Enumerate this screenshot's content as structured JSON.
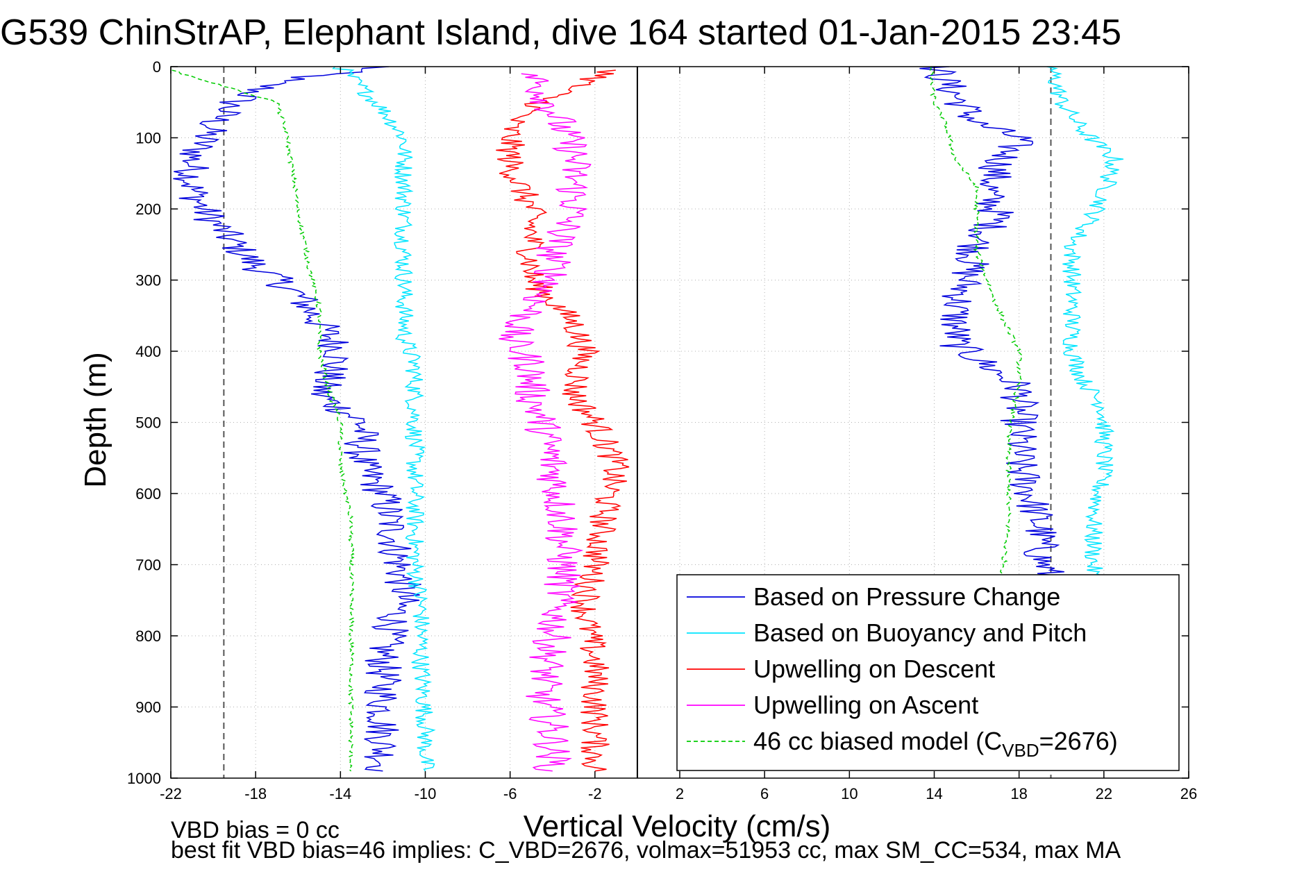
{
  "title": "G539 ChinStrAP, Elephant Island, dive 164 started 01-Jan-2015 23:45",
  "footer": {
    "line1": "VBD bias = 0 cc",
    "line2": "best fit VBD bias=46 implies: C_VBD=2676, volmax=51953 cc, max SM_CC=534, max MA"
  },
  "chart_data": {
    "type": "line",
    "title": "G539 ChinStrAP, Elephant Island, dive 164 started 01-Jan-2015 23:45",
    "xlabel": "Vertical Velocity (cm/s)",
    "ylabel": "Depth (m)",
    "xlim": [
      -22,
      26
    ],
    "ylim": [
      0,
      1000
    ],
    "y_reversed": true,
    "grid": true,
    "xticks": [
      -22,
      -18,
      -14,
      -10,
      -6,
      -2,
      2,
      6,
      10,
      14,
      18,
      22,
      26
    ],
    "yticks": [
      0,
      100,
      200,
      300,
      400,
      500,
      600,
      700,
      800,
      900,
      1000
    ],
    "legend_position": "bottom-right",
    "reference_lines": [
      {
        "type": "vertical",
        "x": -19.5,
        "style": "dashed",
        "color": "#555555"
      },
      {
        "type": "vertical",
        "x": 19.5,
        "style": "dashed",
        "color": "#555555"
      },
      {
        "type": "vertical",
        "x": 0,
        "style": "solid",
        "color": "#000000"
      }
    ],
    "series": [
      {
        "name": "Based on Pressure Change",
        "color": "#0000dd",
        "style": "solid",
        "noise": 0.9,
        "x": [
          -12,
          -17,
          -19,
          -20,
          -21,
          -21,
          -20.5,
          -19,
          -18,
          -16,
          -15,
          -14,
          -15,
          -13,
          -13,
          -12,
          -11.5,
          -11,
          -12,
          -12,
          -12
        ],
        "y": [
          0,
          20,
          50,
          80,
          130,
          170,
          200,
          250,
          280,
          320,
          360,
          400,
          460,
          500,
          560,
          600,
          660,
          740,
          820,
          900,
          990
        ]
      },
      {
        "name": "Based on Pressure Change",
        "color": "#0000dd",
        "style": "solid",
        "noise": 0.9,
        "x": [
          14,
          15,
          16,
          18,
          17,
          16.5,
          17,
          16,
          15.5,
          15,
          15,
          16,
          18,
          18,
          18,
          18.5,
          19,
          19,
          19.5
        ],
        "y": [
          0,
          40,
          80,
          100,
          140,
          180,
          210,
          250,
          300,
          340,
          390,
          410,
          450,
          500,
          560,
          600,
          650,
          690,
          720
        ]
      },
      {
        "name": "Based on Buoyancy and Pitch",
        "color": "#00e5ff",
        "style": "solid",
        "noise": 0.45,
        "x": [
          -14,
          -12,
          -11,
          -11,
          -11,
          -11,
          -11,
          -10.5,
          -10.5,
          -10.5,
          -10.5,
          -10.5,
          -10.2,
          -10.2,
          -10,
          -10
        ],
        "y": [
          0,
          60,
          100,
          180,
          250,
          320,
          380,
          420,
          460,
          520,
          600,
          700,
          760,
          840,
          920,
          990
        ]
      },
      {
        "name": "Based on Buoyancy and Pitch",
        "color": "#00e5ff",
        "style": "solid",
        "noise": 0.45,
        "x": [
          19.5,
          20,
          21,
          22.5,
          22,
          21.5,
          20.5,
          20.5,
          20.5,
          21,
          22,
          22,
          21.5,
          21.5
        ],
        "y": [
          0,
          50,
          90,
          130,
          180,
          210,
          250,
          330,
          400,
          440,
          480,
          560,
          640,
          720
        ]
      },
      {
        "name": "Upwelling on Descent",
        "color": "#ff0000",
        "style": "solid",
        "noise": 0.7,
        "x": [
          -1,
          -4,
          -6,
          -6,
          -5,
          -5,
          -5,
          -3,
          -2.5,
          -3,
          -2,
          -1,
          -1.5,
          -2,
          -2.5,
          -2,
          -2,
          -2
        ],
        "y": [
          5,
          40,
          80,
          140,
          200,
          260,
          300,
          360,
          400,
          460,
          500,
          560,
          620,
          700,
          760,
          840,
          920,
          990
        ]
      },
      {
        "name": "Upwelling on Ascent",
        "color": "#ff00ff",
        "style": "solid",
        "noise": 0.9,
        "x": [
          -5,
          -4,
          -3,
          -3,
          -4,
          -4,
          -5,
          -6,
          -5,
          -5,
          -4.5,
          -4,
          -3.5,
          -3.5,
          -4,
          -4.5,
          -4,
          -4
        ],
        "y": [
          10,
          60,
          120,
          200,
          260,
          300,
          340,
          380,
          420,
          460,
          500,
          560,
          640,
          720,
          800,
          880,
          940,
          990
        ]
      },
      {
        "name": "46 cc biased model (C_VBD=2676)",
        "color": "#00cc00",
        "style": "dashed",
        "noise": 0.12,
        "x": [
          -22,
          -17,
          -16.5,
          -16,
          -15.5,
          -15,
          -15,
          -14.5,
          -14,
          -14,
          -13.5,
          -13.5,
          -13.5,
          -13.5
        ],
        "y": [
          5,
          50,
          100,
          200,
          280,
          340,
          400,
          460,
          500,
          560,
          640,
          760,
          880,
          990
        ]
      },
      {
        "name": "46 cc biased model (C_VBD=2676)",
        "color": "#00cc00",
        "style": "dashed",
        "noise": 0.12,
        "x": [
          13.8,
          14,
          14.5,
          15,
          16,
          16,
          16,
          17,
          18,
          18,
          17.5,
          17.5,
          17.2
        ],
        "y": [
          0,
          50,
          80,
          130,
          170,
          200,
          260,
          340,
          400,
          440,
          520,
          640,
          720
        ]
      }
    ],
    "legend": [
      {
        "label": "Based on Pressure Change",
        "color": "#0000dd",
        "style": "solid"
      },
      {
        "label": "Based on Buoyancy and Pitch",
        "color": "#00e5ff",
        "style": "solid"
      },
      {
        "label": "Upwelling on Descent",
        "color": "#ff0000",
        "style": "solid"
      },
      {
        "label": "Upwelling on Ascent",
        "color": "#ff00ff",
        "style": "solid"
      },
      {
        "label": "46 cc biased model (C",
        "sub": "VBD",
        "suffix": "=2676)",
        "color": "#00cc00",
        "style": "dashed"
      }
    ]
  }
}
